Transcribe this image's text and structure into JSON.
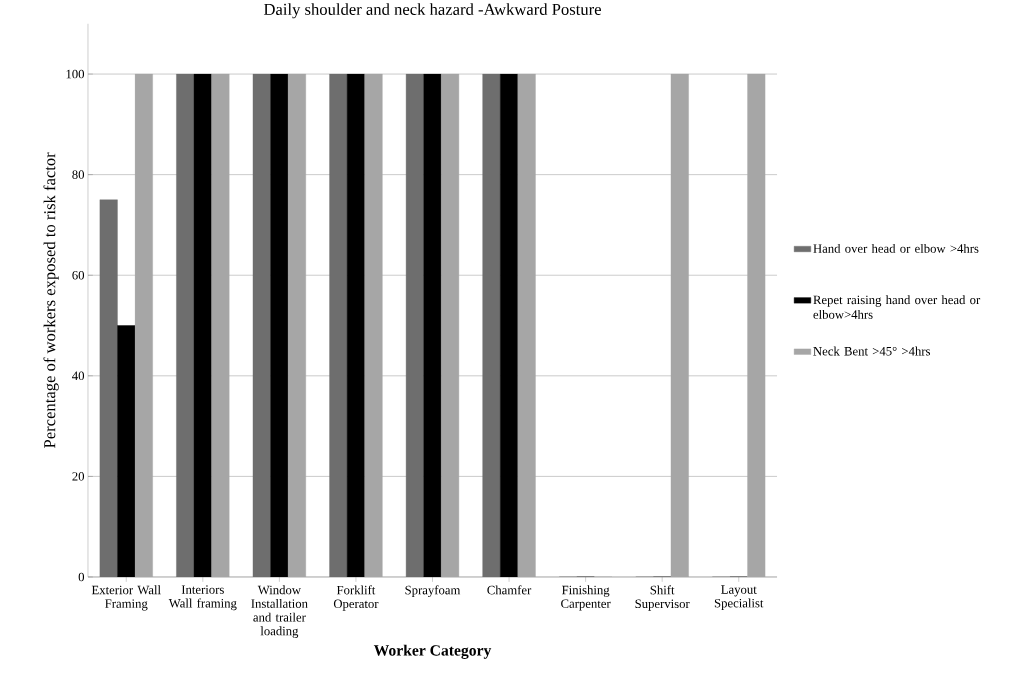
{
  "chart_data": {
    "type": "bar",
    "title": "Daily shoulder and neck  hazard -Awkward Posture",
    "xlabel": "Worker Category",
    "ylabel": "Percentage of workers exposed to risk factor",
    "categories": [
      "Exterior Wall Framing",
      "Interiors Wall framing",
      "Window Installation and trailer loading",
      "Forklift Operator",
      "Sprayfoam",
      "Chamfer",
      "Finishing Carpenter",
      "Shift Supervisor",
      "Layout Specialist"
    ],
    "series": [
      {
        "name": "Hand over head or elbow >4hrs",
        "color": "#6e6e6e",
        "values": [
          75,
          100,
          100,
          100,
          100,
          100,
          0,
          0,
          0
        ]
      },
      {
        "name": "Repet raising hand over head or elbow>4hrs",
        "color": "#000000",
        "values": [
          50,
          100,
          100,
          100,
          100,
          100,
          0,
          0,
          0
        ]
      },
      {
        "name": "Neck Bent >45° >4hrs",
        "color": "#a6a6a6",
        "values": [
          100,
          100,
          100,
          100,
          100,
          100,
          0,
          100,
          100
        ]
      }
    ],
    "ylim": [
      0,
      110
    ],
    "yticks": [
      0,
      20,
      40,
      60,
      80,
      100
    ],
    "grid": "y",
    "legend": "right"
  }
}
